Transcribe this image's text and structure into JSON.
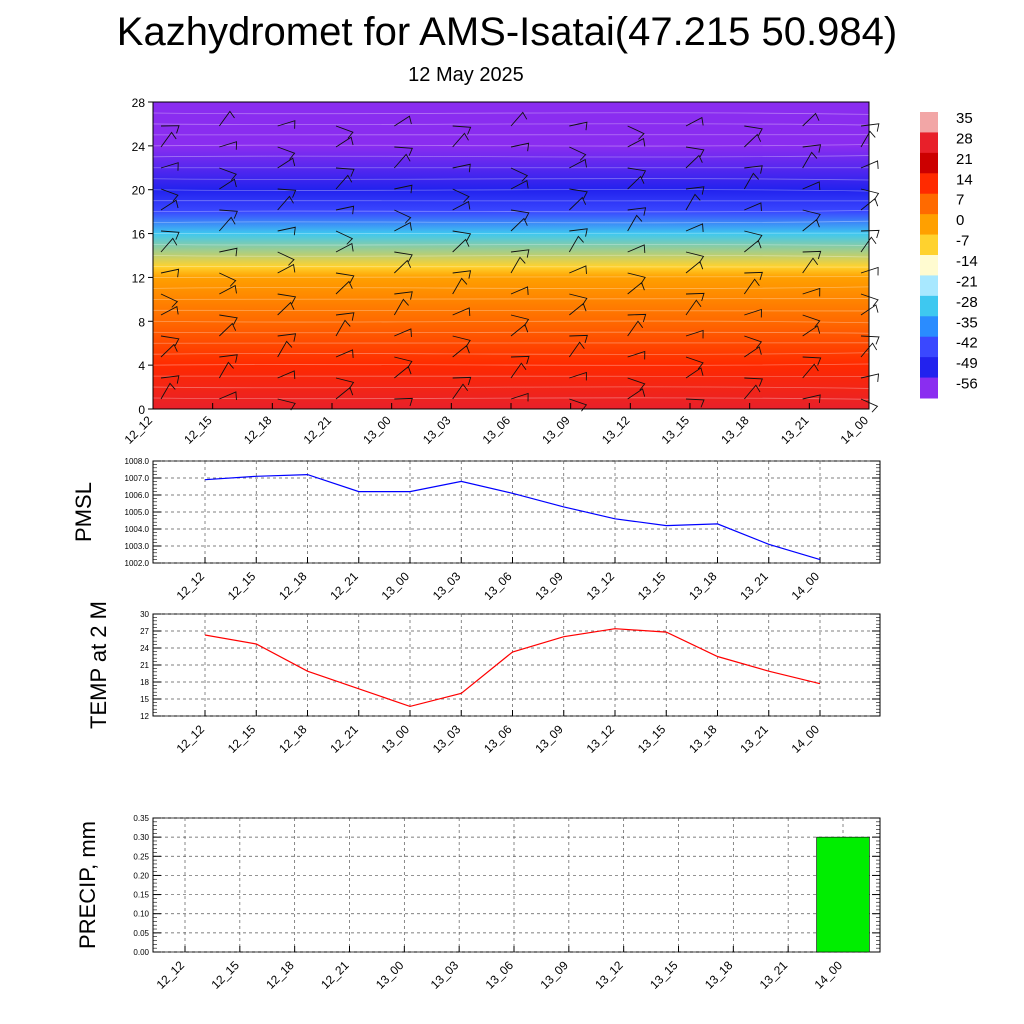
{
  "title": "Kazhydromet for AMS-Isatai(47.215 50.984)",
  "subtitle": "12 May 2025",
  "time_labels": [
    "12_12",
    "12_15",
    "12_18",
    "12_21",
    "13_00",
    "13_03",
    "13_06",
    "13_09",
    "13_12",
    "13_15",
    "13_18",
    "13_21",
    "14_00"
  ],
  "chart_data": [
    {
      "type": "heatmap",
      "title": "",
      "ylabel": "",
      "ylim": [
        0,
        28
      ],
      "yticks": [
        "0",
        "4",
        "8",
        "12",
        "16",
        "20",
        "24",
        "28"
      ],
      "colorbar": {
        "labels": [
          "35",
          "28",
          "21",
          "14",
          "7",
          "0",
          "-7",
          "-14",
          "-21",
          "-28",
          "-35",
          "-42",
          "-49",
          "-56"
        ],
        "colors": [
          "#f2a6a6",
          "#e8202a",
          "#cc0000",
          "#ff2a00",
          "#ff6a00",
          "#ffa000",
          "#ffd22e",
          "#fffbd0",
          "#a8e8ff",
          "#3ec8f0",
          "#2a8cff",
          "#3a48ff",
          "#2222ee",
          "#8a2df0"
        ]
      },
      "temperature_profile": [
        {
          "h": 0,
          "t": 22
        },
        {
          "h": 4,
          "t": 14
        },
        {
          "h": 8,
          "t": 5
        },
        {
          "h": 12,
          "t": -3
        },
        {
          "h": 13,
          "t": -12
        },
        {
          "h": 16,
          "t": -30
        },
        {
          "h": 18,
          "t": -45
        },
        {
          "h": 20,
          "t": -55
        },
        {
          "h": 24,
          "t": -56
        },
        {
          "h": 28,
          "t": -56
        }
      ]
    },
    {
      "type": "line",
      "ylabel": "PMSL",
      "yticks": [
        "1002.0",
        "1003.0",
        "1004.0",
        "1005.0",
        "1006.0",
        "1007.0",
        "1008.0"
      ],
      "ylim": [
        1002,
        1008
      ],
      "series": [
        {
          "color": "#0000ff",
          "values": [
            1006.9,
            1007.1,
            1007.2,
            1006.2,
            1006.2,
            1006.8,
            1006.1,
            1005.3,
            1004.6,
            1004.2,
            1004.3,
            1003.1,
            1002.2
          ]
        }
      ]
    },
    {
      "type": "line",
      "ylabel": "TEMP at 2 M",
      "yticks": [
        "12",
        "15",
        "18",
        "21",
        "24",
        "27",
        "30"
      ],
      "ylim": [
        12,
        30
      ],
      "series": [
        {
          "color": "#ff0000",
          "values": [
            26.3,
            24.7,
            19.9,
            16.8,
            13.7,
            16.0,
            23.3,
            26.0,
            27.4,
            26.8,
            22.5,
            19.9,
            17.7
          ]
        }
      ]
    },
    {
      "type": "bar",
      "ylabel": "PRECIP, mm",
      "yticks": [
        "0.00",
        "0.05",
        "0.10",
        "0.15",
        "0.20",
        "0.25",
        "0.30",
        "0.35"
      ],
      "ylim": [
        0,
        0.35
      ],
      "bar_color": "#00ee00",
      "values": [
        0,
        0,
        0,
        0,
        0,
        0,
        0,
        0,
        0,
        0,
        0,
        0,
        0.3
      ]
    }
  ]
}
